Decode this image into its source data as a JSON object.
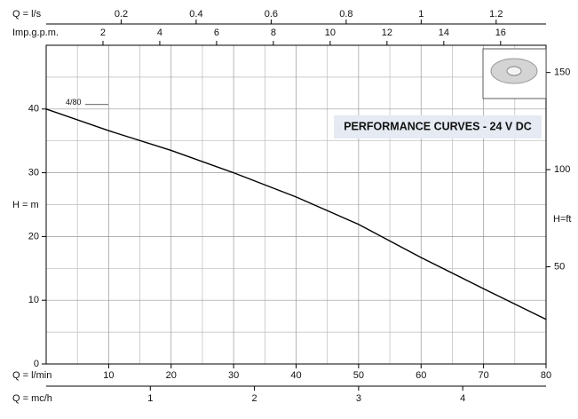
{
  "chart_data": {
    "type": "line",
    "title": "PERFORMANCE CURVES - 24 V DC",
    "xlabel": "Q = l/min",
    "ylabel": "H = m",
    "x": [
      0,
      10,
      20,
      30,
      40,
      50,
      60,
      70,
      80
    ],
    "series": [
      {
        "name": "4/80",
        "color": "#000000",
        "values": [
          40,
          36.6,
          33.5,
          30,
          26.2,
          21.9,
          16.7,
          11.8,
          7
        ]
      }
    ],
    "xlim": [
      0,
      80
    ],
    "xticks": [
      10,
      20,
      30,
      40,
      50,
      60,
      70,
      80
    ],
    "xminor": [
      5,
      15,
      25,
      35,
      45,
      55,
      65,
      75
    ],
    "ylim": [
      0,
      50
    ],
    "yticks": [
      0,
      10,
      20,
      30,
      40
    ],
    "yminor": [
      5,
      15,
      25,
      35,
      45,
      50
    ],
    "grid": true,
    "top_axes": [
      {
        "label": "Q = l/s",
        "lim": [
          0,
          1.333
        ],
        "ticks": [
          0.2,
          0.4,
          0.6,
          0.8,
          1,
          1.2
        ]
      },
      {
        "label": "Imp.g.p.m.",
        "lim": [
          0,
          17.6
        ],
        "ticks": [
          2,
          4,
          6,
          8,
          10,
          12,
          14,
          16
        ]
      }
    ],
    "bottom_axis": {
      "label": "Q = mc/h",
      "lim": [
        0,
        4.8
      ],
      "ticks": [
        1,
        2,
        3,
        4
      ]
    },
    "y2label": "H=ft",
    "y2lim": [
      0,
      164
    ],
    "y2ticks": [
      50,
      100,
      150
    ]
  }
}
